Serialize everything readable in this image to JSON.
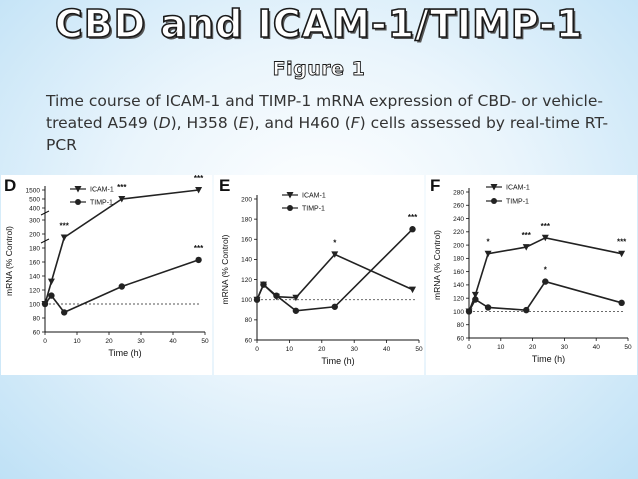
{
  "slide": {
    "title": "CBD and ICAM-1/TIMP-1",
    "subtitle": "Figure 1",
    "caption": {
      "p1": "Time course of ICAM-1 and TIMP-1 mRNA expression of CBD- or vehicle-treated A549 (",
      "l1": "D",
      "p2": "), H358 (",
      "l2": "E",
      "p3": "), and H460 (",
      "l3": "F",
      "p4": ") cells assessed by real-time RT-PCR"
    }
  },
  "colors": {
    "series": "#222222",
    "baseline": "#555555"
  },
  "chart_data": [
    {
      "panel": "D",
      "type": "line",
      "xlabel": "Time (h)",
      "ylabel": "mRNA (% Control)",
      "xlim": [
        0,
        50
      ],
      "xticks": [
        "0",
        "10",
        "20",
        "30",
        "40",
        "50"
      ],
      "ytick_labels": [
        "60",
        "80",
        "100",
        "120",
        "140",
        "160",
        "180",
        "200",
        "300",
        "400",
        "500",
        "1500"
      ],
      "legend": [
        "ICAM-1",
        "TIMP-1"
      ],
      "series": [
        {
          "name": "ICAM-1",
          "marker": "triangle-down",
          "x": [
            0,
            2,
            6,
            24,
            48
          ],
          "y": [
            100,
            132,
            195,
            500,
            1500
          ],
          "annotations": [
            {
              "x": 6,
              "y": 195,
              "text": "***"
            },
            {
              "x": 24,
              "y": 500,
              "text": "***"
            },
            {
              "x": 48,
              "y": 1500,
              "text": "***"
            }
          ]
        },
        {
          "name": "TIMP-1",
          "marker": "circle",
          "x": [
            0,
            2,
            6,
            24,
            48
          ],
          "y": [
            100,
            112,
            88,
            125,
            163
          ],
          "annotations": [
            {
              "x": 48,
              "y": 163,
              "text": "***"
            }
          ]
        }
      ]
    },
    {
      "panel": "E",
      "type": "line",
      "xlabel": "Time (h)",
      "ylabel": "mRNA (% Control)",
      "ylim": [
        60,
        200
      ],
      "xticks": [
        "0",
        "10",
        "20",
        "30",
        "40",
        "50"
      ],
      "ytick_labels": [
        "60",
        "80",
        "100",
        "120",
        "140",
        "160",
        "180",
        "200"
      ],
      "legend": [
        "ICAM-1",
        "TIMP-1"
      ],
      "series": [
        {
          "name": "ICAM-1",
          "marker": "triangle-down",
          "x": [
            0,
            2,
            6,
            12,
            24,
            48
          ],
          "y": [
            100,
            115,
            103,
            102,
            145,
            110
          ],
          "annotations": [
            {
              "x": 24,
              "y": 145,
              "text": "*"
            }
          ]
        },
        {
          "name": "TIMP-1",
          "marker": "circle",
          "x": [
            0,
            2,
            6,
            12,
            24,
            48
          ],
          "y": [
            100,
            115,
            104,
            89,
            93,
            170
          ],
          "annotations": [
            {
              "x": 48,
              "y": 170,
              "text": "***"
            }
          ]
        }
      ]
    },
    {
      "panel": "F",
      "type": "line",
      "xlabel": "Time (h)",
      "ylabel": "mRNA (% Control)",
      "ylim": [
        60,
        280
      ],
      "xticks": [
        "0",
        "10",
        "20",
        "30",
        "40",
        "50"
      ],
      "ytick_labels": [
        "60",
        "80",
        "100",
        "120",
        "140",
        "160",
        "180",
        "200",
        "220",
        "240",
        "260",
        "280"
      ],
      "legend": [
        "ICAM-1",
        "TIMP-1"
      ],
      "series": [
        {
          "name": "ICAM-1",
          "marker": "triangle-down",
          "x": [
            0,
            2,
            6,
            18,
            24,
            48
          ],
          "y": [
            100,
            125,
            187,
            197,
            211,
            187
          ],
          "annotations": [
            {
              "x": 6,
              "y": 187,
              "text": "*"
            },
            {
              "x": 18,
              "y": 197,
              "text": "***"
            },
            {
              "x": 24,
              "y": 211,
              "text": "***"
            },
            {
              "x": 48,
              "y": 187,
              "text": "***"
            }
          ]
        },
        {
          "name": "TIMP-1",
          "marker": "circle",
          "x": [
            0,
            2,
            6,
            18,
            24,
            48
          ],
          "y": [
            100,
            118,
            106,
            102,
            145,
            113
          ],
          "annotations": [
            {
              "x": 24,
              "y": 145,
              "text": "*"
            }
          ]
        }
      ]
    }
  ]
}
